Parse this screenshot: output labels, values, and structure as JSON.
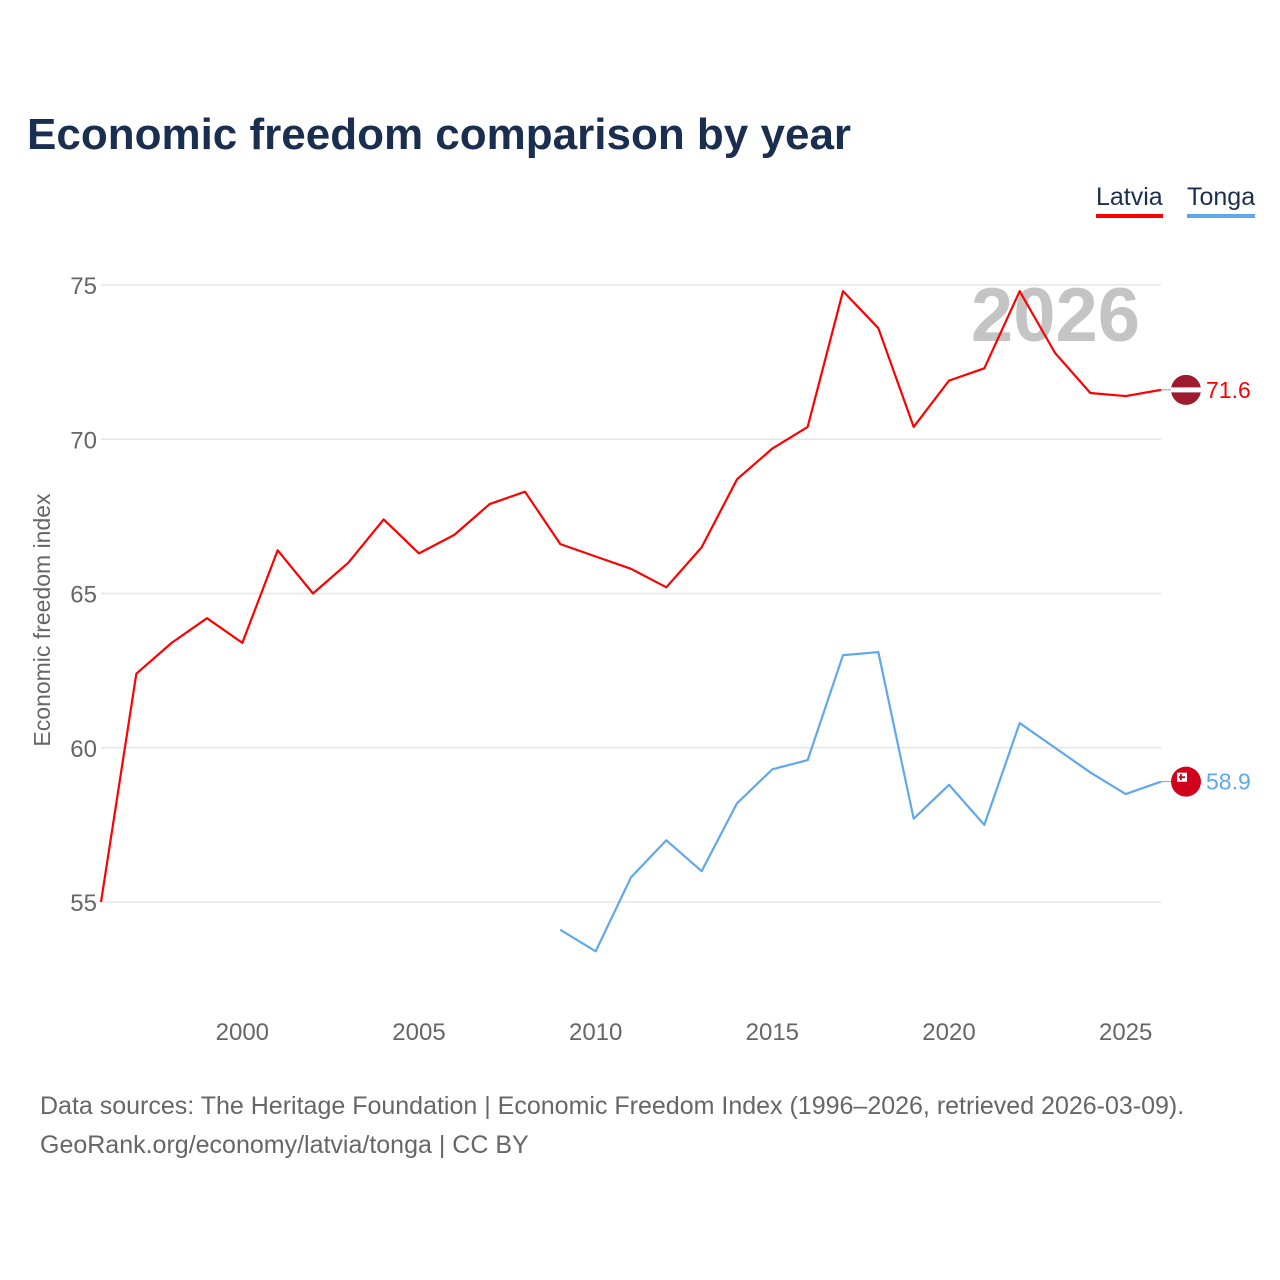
{
  "chart_data": {
    "type": "line",
    "title": "Economic freedom comparison by year",
    "xlabel": "",
    "ylabel": "Economic freedom index",
    "xlim": [
      1996,
      2026
    ],
    "ylim": [
      55,
      75
    ],
    "xticks": [
      2000,
      2005,
      2010,
      2015,
      2020,
      2025
    ],
    "yticks": [
      55,
      60,
      65,
      70,
      75
    ],
    "grid": true,
    "legend_position": "top-right",
    "year_watermark": "2026",
    "series": [
      {
        "name": "Latvia",
        "color": "#ff0000",
        "end_label": "71.6",
        "x": [
          1996,
          1997,
          1998,
          1999,
          2000,
          2001,
          2002,
          2003,
          2004,
          2005,
          2006,
          2007,
          2008,
          2009,
          2010,
          2011,
          2012,
          2013,
          2014,
          2015,
          2016,
          2017,
          2018,
          2019,
          2020,
          2021,
          2022,
          2023,
          2024,
          2025,
          2026
        ],
        "y": [
          55.0,
          62.4,
          63.4,
          64.2,
          63.4,
          66.4,
          65.0,
          66.0,
          67.4,
          66.3,
          66.9,
          67.9,
          68.3,
          66.6,
          66.2,
          65.8,
          65.2,
          66.5,
          68.7,
          69.7,
          70.4,
          74.8,
          73.6,
          70.4,
          71.9,
          72.3,
          74.8,
          72.8,
          71.5,
          71.4,
          71.6
        ]
      },
      {
        "name": "Tonga",
        "color": "#5fa8ec",
        "end_label": "58.9",
        "x": [
          2009,
          2010,
          2011,
          2012,
          2013,
          2014,
          2015,
          2016,
          2017,
          2018,
          2019,
          2020,
          2021,
          2022,
          2023,
          2024,
          2025,
          2026
        ],
        "y": [
          54.1,
          53.4,
          55.8,
          57.0,
          56.0,
          58.2,
          59.3,
          59.6,
          63.0,
          63.1,
          57.7,
          58.8,
          57.5,
          60.8,
          60.0,
          59.2,
          58.5,
          58.9
        ]
      }
    ]
  },
  "source_line1": "Data sources: The Heritage Foundation | Economic Freedom Index (1996–2026, retrieved 2026-03-09).",
  "source_line2": "GeoRank.org/economy/latvia/tonga | CC BY"
}
